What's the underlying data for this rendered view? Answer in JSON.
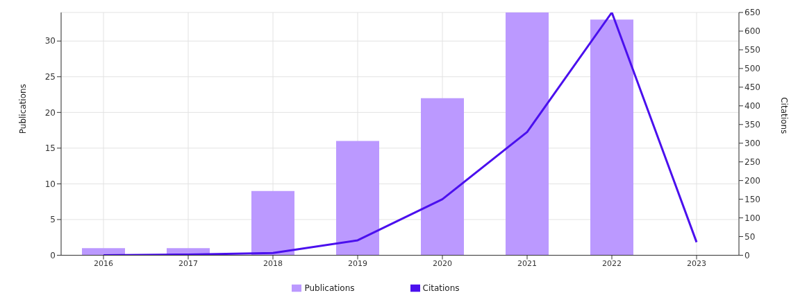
{
  "chart_data": {
    "type": "bar",
    "categories": [
      "2016",
      "2017",
      "2018",
      "2019",
      "2020",
      "2021",
      "2022",
      "2023"
    ],
    "series": [
      {
        "name": "Publications",
        "color": "#bb99ff",
        "values": [
          1,
          1,
          9,
          16,
          22,
          34,
          33,
          0
        ]
      },
      {
        "name": "Citations",
        "type": "line",
        "axis": "y2",
        "color": "#4b10ee",
        "values": [
          0,
          2,
          6,
          40,
          150,
          330,
          650,
          35
        ]
      }
    ],
    "ylabel": "Publications",
    "y2label": "Citations",
    "ylim": [
      0,
      34
    ],
    "yticks": [
      0,
      5,
      10,
      15,
      20,
      25,
      30
    ],
    "y2lim": [
      0,
      650
    ],
    "y2ticks": [
      0,
      50,
      100,
      150,
      200,
      250,
      300,
      350,
      400,
      450,
      500,
      550,
      600,
      650
    ],
    "grid": true,
    "legend": "bottom",
    "marker": "none",
    "line_style": "solid"
  }
}
